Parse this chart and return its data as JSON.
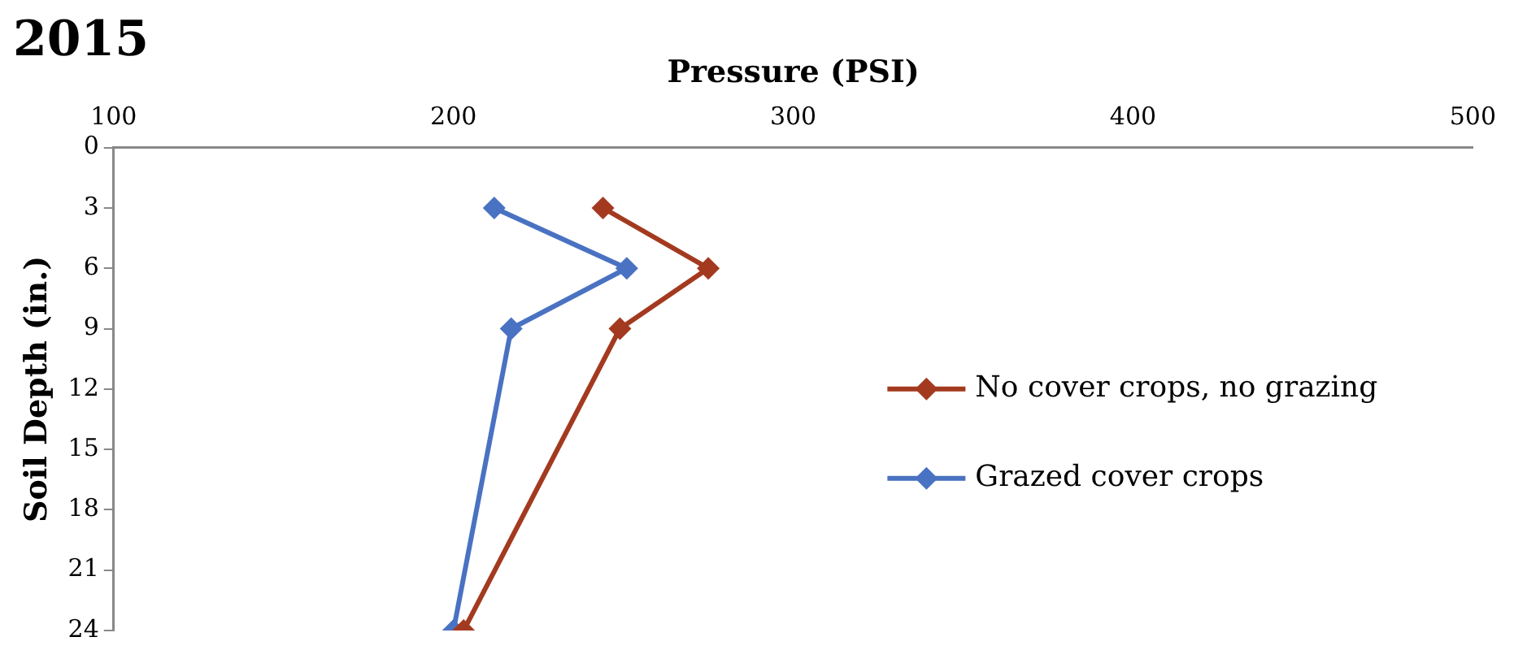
{
  "chart_data": {
    "type": "line",
    "title": "2015",
    "xlabel": "Pressure (PSI)",
    "ylabel": "Soil Depth (in.)",
    "xlim": [
      100,
      500
    ],
    "xticks": [
      100,
      200,
      300,
      400,
      500
    ],
    "ylim": [
      24,
      0
    ],
    "yticks": [
      0,
      3,
      6,
      9,
      12,
      15,
      18,
      21,
      24
    ],
    "grid": false,
    "legend": "right",
    "marker": "diamond",
    "line_style": "solid",
    "series": [
      {
        "name": "No cover crops, no grazing",
        "color": "#a33a1f",
        "x": [
          244,
          275,
          249,
          203
        ],
        "values": [
          3,
          6,
          9,
          24
        ]
      },
      {
        "name": "Grazed cover crops",
        "color": "#4a72c2",
        "x": [
          212,
          251,
          217,
          200
        ],
        "values": [
          3,
          6,
          9,
          24
        ]
      }
    ]
  }
}
